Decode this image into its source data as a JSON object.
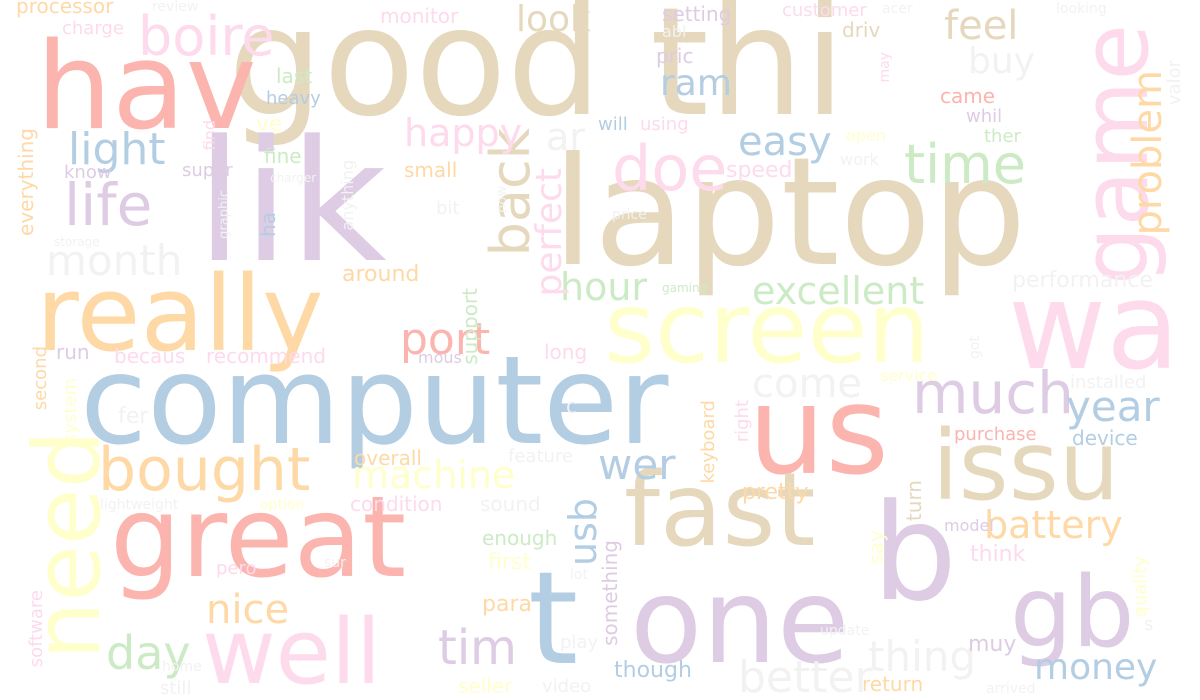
{
  "palette": {
    "red": "#fbb4ae",
    "blue": "#b3cde3",
    "green": "#ccebc5",
    "purple": "#decbe4",
    "orange": "#fed9a6",
    "yellow": "#ffffcc",
    "tan": "#e5d8bd",
    "pink": "#fddaec",
    "grey": "#f2f2f2"
  },
  "words": [
    {
      "text": "good",
      "color": "#e5d8bd"
    },
    {
      "text": "thi",
      "color": "#e5d8bd"
    },
    {
      "text": "hav",
      "color": "#fbb4ae"
    },
    {
      "text": "lik",
      "color": "#decbe4"
    },
    {
      "text": "laptop",
      "color": "#e5d8bd"
    },
    {
      "text": "computer",
      "color": "#b3cde3"
    },
    {
      "text": "really",
      "color": "#fed9a6"
    },
    {
      "text": "great",
      "color": "#fbb4ae"
    },
    {
      "text": "screen",
      "color": "#ffffcc"
    },
    {
      "text": "wa",
      "color": "#fddaec"
    },
    {
      "text": "us",
      "color": "#fbb4ae"
    },
    {
      "text": "issu",
      "color": "#e5d8bd"
    },
    {
      "text": "fast",
      "color": "#e5d8bd"
    },
    {
      "text": "one",
      "color": "#decbe4"
    },
    {
      "text": "well",
      "color": "#fddaec"
    },
    {
      "text": "t",
      "color": "#b3cde3"
    },
    {
      "text": "b",
      "color": "#decbe4"
    },
    {
      "text": "gb",
      "color": "#decbe4"
    },
    {
      "text": "game",
      "color": "#fddaec"
    },
    {
      "text": "need",
      "color": "#ffffcc"
    },
    {
      "text": "boire",
      "color": "#fddaec"
    },
    {
      "text": "back",
      "color": "#e5d8bd"
    },
    {
      "text": "doe",
      "color": "#fddaec"
    },
    {
      "text": "time",
      "color": "#ccebc5"
    },
    {
      "text": "much",
      "color": "#decbe4"
    },
    {
      "text": "bought",
      "color": "#fed9a6"
    },
    {
      "text": "life",
      "color": "#decbe4"
    },
    {
      "text": "light",
      "color": "#b3cde3"
    },
    {
      "text": "month",
      "color": "#f2f2f2"
    },
    {
      "text": "port",
      "color": "#fbb4ae"
    },
    {
      "text": "happy",
      "color": "#fddaec"
    },
    {
      "text": "easy",
      "color": "#b3cde3"
    },
    {
      "text": "hour",
      "color": "#ccebc5"
    },
    {
      "text": "excellent",
      "color": "#ccebc5"
    },
    {
      "text": "perfect",
      "color": "#fddaec"
    },
    {
      "text": "problem",
      "color": "#fed9a6"
    },
    {
      "text": "machine",
      "color": "#ffffcc"
    },
    {
      "text": "wer",
      "color": "#b3cde3"
    },
    {
      "text": "come",
      "color": "#f2f2f2"
    },
    {
      "text": "year",
      "color": "#b3cde3"
    },
    {
      "text": "battery",
      "color": "#fed9a6"
    },
    {
      "text": "nice",
      "color": "#fed9a6"
    },
    {
      "text": "thing",
      "color": "#f2f2f2"
    },
    {
      "text": "money",
      "color": "#b3cde3"
    },
    {
      "text": "better",
      "color": "#f2f2f2"
    },
    {
      "text": "tim",
      "color": "#decbe4"
    },
    {
      "text": "day",
      "color": "#ccebc5"
    },
    {
      "text": "usb",
      "color": "#b3cde3"
    },
    {
      "text": "feel",
      "color": "#e5d8bd"
    },
    {
      "text": "buy",
      "color": "#f2f2f2"
    },
    {
      "text": "ram",
      "color": "#b3cde3"
    },
    {
      "text": "look",
      "color": "#e5d8bd"
    },
    {
      "text": "ar",
      "color": "#f2f2f2"
    },
    {
      "text": "pretty",
      "color": "#fed9a6"
    },
    {
      "text": "performance",
      "color": "#f2f2f2"
    },
    {
      "text": "device",
      "color": "#b3cde3"
    },
    {
      "text": "processor",
      "color": "#fed9a6"
    },
    {
      "text": "review",
      "color": "#f2f2f2"
    },
    {
      "text": "monitor",
      "color": "#fddaec"
    },
    {
      "text": "setting",
      "color": "#decbe4"
    },
    {
      "text": "customer",
      "color": "#fddaec"
    },
    {
      "text": "acer",
      "color": "#f2f2f2"
    },
    {
      "text": "looking",
      "color": "#f2f2f2"
    },
    {
      "text": "charge",
      "color": "#fddaec"
    },
    {
      "text": "abl",
      "color": "#f2f2f2"
    },
    {
      "text": "pric",
      "color": "#decbe4"
    },
    {
      "text": "driv",
      "color": "#e5d8bd"
    },
    {
      "text": "last",
      "color": "#ccebc5"
    },
    {
      "text": "heavy",
      "color": "#b3cde3"
    },
    {
      "text": "ve",
      "color": "#ffffcc"
    },
    {
      "text": "will",
      "color": "#b3cde3"
    },
    {
      "text": "using",
      "color": "#fddaec"
    },
    {
      "text": "came",
      "color": "#fbb4ae"
    },
    {
      "text": "whil",
      "color": "#decbe4"
    },
    {
      "text": "ther",
      "color": "#ccebc5"
    },
    {
      "text": "open",
      "color": "#ffffcc"
    },
    {
      "text": "work",
      "color": "#f2f2f2"
    },
    {
      "text": "fine",
      "color": "#ccebc5"
    },
    {
      "text": "know",
      "color": "#decbe4"
    },
    {
      "text": "super",
      "color": "#decbe4"
    },
    {
      "text": "charger",
      "color": "#f2f2f2"
    },
    {
      "text": "small",
      "color": "#fed9a6"
    },
    {
      "text": "speed",
      "color": "#fddaec"
    },
    {
      "text": "bit",
      "color": "#f2f2f2"
    },
    {
      "text": "price",
      "color": "#f2f2f2"
    },
    {
      "text": "everything",
      "color": "#fed9a6"
    },
    {
      "text": "storage",
      "color": "#f2f2f2"
    },
    {
      "text": "ha",
      "color": "#b3cde3"
    },
    {
      "text": "around",
      "color": "#fed9a6"
    },
    {
      "text": "gaming",
      "color": "#ccebc5"
    },
    {
      "text": "support",
      "color": "#ccebc5"
    },
    {
      "text": "run",
      "color": "#decbe4"
    },
    {
      "text": "becaus",
      "color": "#fddaec"
    },
    {
      "text": "recommend",
      "color": "#fddaec"
    },
    {
      "text": "mous",
      "color": "#decbe4"
    },
    {
      "text": "long",
      "color": "#fddaec"
    },
    {
      "text": "second",
      "color": "#fed9a6"
    },
    {
      "text": "system",
      "color": "#ffffcc"
    },
    {
      "text": "fer",
      "color": "#f2f2f2"
    },
    {
      "text": "service",
      "color": "#ffffcc"
    },
    {
      "text": "installed",
      "color": "#f2f2f2"
    },
    {
      "text": "purchase",
      "color": "#fbb4ae"
    },
    {
      "text": "keyboard",
      "color": "#fed9a6"
    },
    {
      "text": "right",
      "color": "#fddaec"
    },
    {
      "text": "feature",
      "color": "#f2f2f2"
    },
    {
      "text": "overall",
      "color": "#fed9a6"
    },
    {
      "text": "condition",
      "color": "#fddaec"
    },
    {
      "text": "sound",
      "color": "#f2f2f2"
    },
    {
      "text": "turn",
      "color": "#e5d8bd"
    },
    {
      "text": "say",
      "color": "#ffffcc"
    },
    {
      "text": "model",
      "color": "#decbe4"
    },
    {
      "text": "think",
      "color": "#fddaec"
    },
    {
      "text": "option",
      "color": "#ffffcc"
    },
    {
      "text": "lightweight",
      "color": "#f2f2f2"
    },
    {
      "text": "enough",
      "color": "#ccebc5"
    },
    {
      "text": "first",
      "color": "#ffffcc"
    },
    {
      "text": "something",
      "color": "#decbe4"
    },
    {
      "text": "pero",
      "color": "#fddaec"
    },
    {
      "text": "sur",
      "color": "#f2f2f2"
    },
    {
      "text": "lot",
      "color": "#f2f2f2"
    },
    {
      "text": "para",
      "color": "#fed9a6"
    },
    {
      "text": "software",
      "color": "#fddaec"
    },
    {
      "text": "quality",
      "color": "#ffffcc"
    },
    {
      "text": "play",
      "color": "#f2f2f2"
    },
    {
      "text": "update",
      "color": "#f2f2f2"
    },
    {
      "text": "muy",
      "color": "#decbe4"
    },
    {
      "text": "home",
      "color": "#f2f2f2"
    },
    {
      "text": "still",
      "color": "#f2f2f2"
    },
    {
      "text": "though",
      "color": "#b3cde3"
    },
    {
      "text": "seller",
      "color": "#ffffcc"
    },
    {
      "text": "video",
      "color": "#f2f2f2"
    },
    {
      "text": "return",
      "color": "#fed9a6"
    },
    {
      "text": "arrived",
      "color": "#f2f2f2"
    },
    {
      "text": "valor",
      "color": "#f2f2f2"
    },
    {
      "text": "may",
      "color": "#fddaec"
    },
    {
      "text": "find",
      "color": "#fddaec"
    },
    {
      "text": "graphic",
      "color": "#f2f2f2"
    },
    {
      "text": "anything",
      "color": "#f2f2f2"
    },
    {
      "text": "now",
      "color": "#f2f2f2"
    },
    {
      "text": "got",
      "color": "#f2f2f2"
    },
    {
      "text": "c",
      "color": "#f2f2f2"
    },
    {
      "text": "s",
      "color": "#f2f2f2"
    }
  ]
}
